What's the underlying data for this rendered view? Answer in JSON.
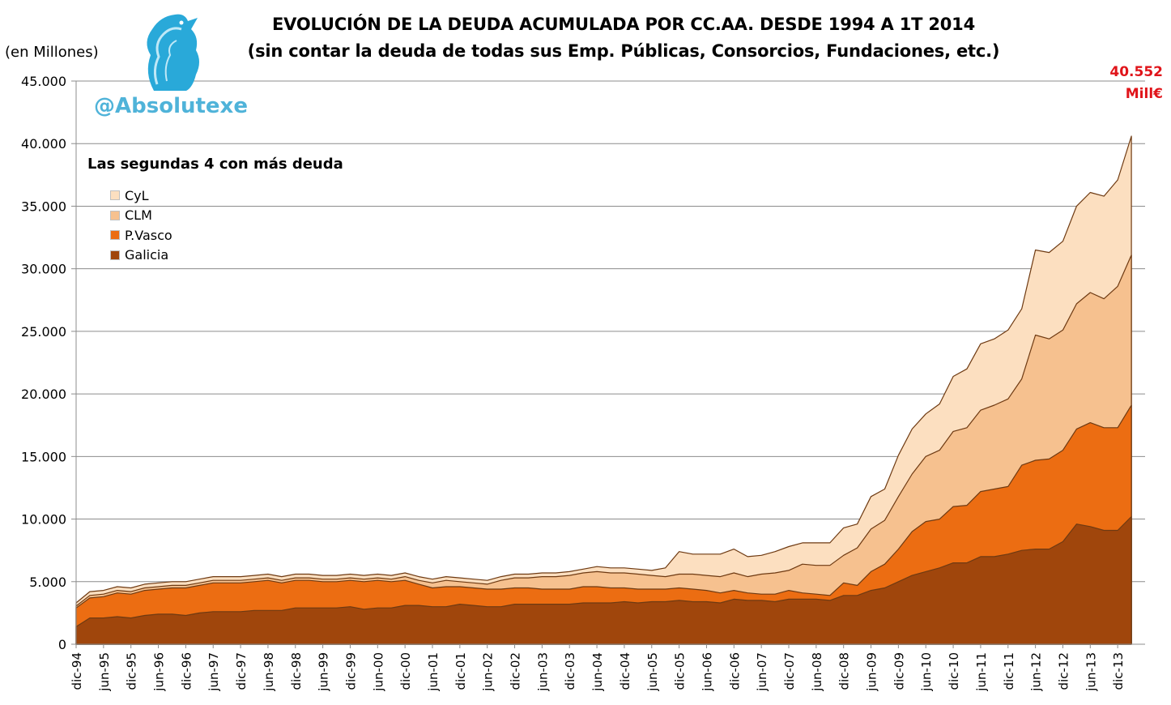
{
  "title_line1": "EVOLUCIÓN DE LA DEUDA ACUMULADA POR CC.AA. DESDE 1994 A 1T 2014",
  "title_line2": "(sin contar la deuda de todas sus Emp. Públicas, Consorcios, Fundaciones, etc.)",
  "unit_label": "(en Millones)",
  "watermark": "@Absolutexe",
  "annotation": {
    "value": "40.552",
    "unit": "Mill€",
    "color": "#e0141a"
  },
  "logo_icon": "griffin-logo-icon",
  "chart_data": {
    "type": "area",
    "stacked": true,
    "title": "Las segundas 4 con más deuda",
    "xlabel": "",
    "ylabel": "(en Millones)",
    "ylim": [
      0,
      45000
    ],
    "yticks": [
      "0",
      "5.000",
      "10.000",
      "15.000",
      "20.000",
      "25.000",
      "30.000",
      "35.000",
      "40.000",
      "45.000"
    ],
    "grid": true,
    "legend_position": "top-left",
    "categories": [
      "dic-94",
      "mar-95",
      "jun-95",
      "sep-95",
      "dic-95",
      "mar-96",
      "jun-96",
      "sep-96",
      "dic-96",
      "mar-97",
      "jun-97",
      "sep-97",
      "dic-97",
      "mar-98",
      "jun-98",
      "sep-98",
      "dic-98",
      "mar-99",
      "jun-99",
      "sep-99",
      "dic-99",
      "mar-00",
      "jun-00",
      "sep-00",
      "dic-00",
      "mar-01",
      "jun-01",
      "sep-01",
      "dic-01",
      "mar-02",
      "jun-02",
      "sep-02",
      "dic-02",
      "mar-03",
      "jun-03",
      "sep-03",
      "dic-03",
      "mar-04",
      "jun-04",
      "sep-04",
      "dic-04",
      "mar-05",
      "jun-05",
      "sep-05",
      "dic-05",
      "mar-06",
      "jun-06",
      "sep-06",
      "dic-06",
      "mar-07",
      "jun-07",
      "sep-07",
      "dic-07",
      "mar-08",
      "jun-08",
      "sep-08",
      "dic-08",
      "mar-09",
      "jun-09",
      "sep-09",
      "dic-09",
      "mar-10",
      "jun-10",
      "sep-10",
      "dic-10",
      "mar-11",
      "jun-11",
      "sep-11",
      "dic-11",
      "mar-12",
      "jun-12",
      "sep-12",
      "dic-12",
      "mar-13",
      "jun-13",
      "sep-13",
      "dic-13",
      "mar-14"
    ],
    "tick_labels": [
      "dic-94",
      "jun-95",
      "dic-95",
      "jun-96",
      "dic-96",
      "jun-97",
      "dic-97",
      "jun-98",
      "dic-98",
      "jun-99",
      "dic-99",
      "jun-00",
      "dic-00",
      "jun-01",
      "dic-01",
      "jun-02",
      "dic-02",
      "jun-03",
      "dic-03",
      "jun-04",
      "dic-04",
      "jun-05",
      "dic-05",
      "jun-06",
      "dic-06",
      "jun-07",
      "dic-07",
      "jun-08",
      "dic-08",
      "jun-09",
      "dic-09",
      "jun-10",
      "dic-10",
      "jun-11",
      "dic-11",
      "jun-12",
      "dic-12",
      "jun-13",
      "dic-13"
    ],
    "series": [
      {
        "name": "Galicia",
        "color": "#a0460c",
        "values": [
          1400,
          2100,
          2100,
          2200,
          2100,
          2300,
          2400,
          2400,
          2300,
          2500,
          2600,
          2600,
          2600,
          2700,
          2700,
          2700,
          2900,
          2900,
          2900,
          2900,
          3000,
          2800,
          2900,
          2900,
          3100,
          3100,
          3000,
          3000,
          3200,
          3100,
          3000,
          3000,
          3200,
          3200,
          3200,
          3200,
          3200,
          3300,
          3300,
          3300,
          3400,
          3300,
          3400,
          3400,
          3500,
          3400,
          3400,
          3300,
          3600,
          3500,
          3500,
          3400,
          3600,
          3600,
          3600,
          3500,
          3900,
          3900,
          4300,
          4500,
          5000,
          5500,
          5800,
          6100,
          6500,
          6500,
          7000,
          7000,
          7200,
          7500,
          7600,
          7600,
          8200,
          9600,
          9400,
          9100,
          9100,
          10200
        ]
      },
      {
        "name": "P.Vasco",
        "color": "#ec6d12",
        "values": [
          1500,
          1600,
          1700,
          1900,
          1900,
          2000,
          2000,
          2100,
          2200,
          2200,
          2300,
          2300,
          2300,
          2300,
          2400,
          2200,
          2200,
          2200,
          2100,
          2100,
          2100,
          2200,
          2200,
          2100,
          2000,
          1700,
          1500,
          1600,
          1400,
          1400,
          1400,
          1400,
          1300,
          1300,
          1200,
          1200,
          1200,
          1300,
          1300,
          1200,
          1100,
          1100,
          1000,
          1000,
          1000,
          1000,
          900,
          800,
          700,
          600,
          500,
          600,
          700,
          500,
          400,
          400,
          1000,
          800,
          1500,
          1900,
          2600,
          3500,
          4000,
          3900,
          4500,
          4600,
          5200,
          5400,
          5400,
          6800,
          7100,
          7200,
          7300,
          7600,
          8300,
          8200,
          8200,
          8900
        ]
      },
      {
        "name": "CLM",
        "color": "#f6c18f",
        "values": [
          150,
          200,
          200,
          200,
          200,
          200,
          200,
          200,
          200,
          200,
          200,
          200,
          200,
          200,
          200,
          200,
          200,
          200,
          200,
          200,
          200,
          200,
          200,
          200,
          300,
          300,
          400,
          500,
          400,
          400,
          400,
          700,
          800,
          800,
          1000,
          1000,
          1100,
          1100,
          1200,
          1200,
          1200,
          1200,
          1100,
          1000,
          1100,
          1200,
          1200,
          1300,
          1400,
          1300,
          1600,
          1700,
          1600,
          2300,
          2300,
          2400,
          2200,
          3000,
          3400,
          3500,
          4200,
          4600,
          5200,
          5500,
          6000,
          6200,
          6500,
          6700,
          7000,
          6900,
          10000,
          9600,
          9600,
          10000,
          10400,
          10300,
          11300,
          12000
        ]
      },
      {
        "name": "CyL",
        "color": "#fcdfc0",
        "values": [
          250,
          300,
          300,
          300,
          300,
          300,
          300,
          300,
          300,
          300,
          300,
          300,
          300,
          300,
          300,
          300,
          300,
          300,
          300,
          300,
          300,
          300,
          300,
          300,
          300,
          300,
          300,
          300,
          300,
          300,
          300,
          300,
          300,
          300,
          300,
          300,
          300,
          300,
          400,
          400,
          400,
          400,
          400,
          700,
          1800,
          1600,
          1700,
          1800,
          1900,
          1600,
          1500,
          1700,
          1900,
          1700,
          1800,
          1800,
          2200,
          1900,
          2600,
          2500,
          3300,
          3600,
          3400,
          3700,
          4400,
          4700,
          5300,
          5300,
          5500,
          5600,
          6800,
          6900,
          7100,
          7800,
          8000,
          8200,
          8500,
          9500
        ]
      }
    ]
  }
}
